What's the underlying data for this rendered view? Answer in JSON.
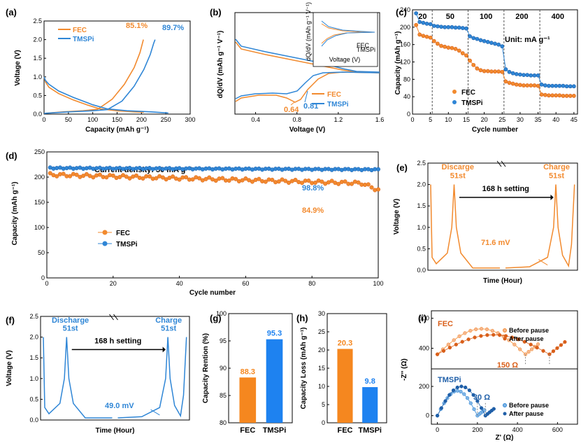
{
  "colors": {
    "fec": "#F28A2E",
    "tmspi": "#2F86D6",
    "fec_dark": "#D95F1A",
    "tmspi_dark": "#1F5FA8",
    "bar_fec": "#F5871F",
    "bar_tmspi": "#1E82F0"
  },
  "panels": {
    "a": {
      "label": "(a)",
      "xlabel": "Capacity (mAh g⁻¹)",
      "ylabel": "Voltage (V)",
      "xticks": [
        "0",
        "50",
        "100",
        "150",
        "200",
        "250",
        "300"
      ],
      "yticks": [
        "0.0",
        "0.5",
        "1.0",
        "1.5",
        "2.0",
        "2.5"
      ],
      "legend": [
        "FEC",
        "TMSPi"
      ],
      "annot_fec": "85.1%",
      "annot_tmspi": "89.7%"
    },
    "b": {
      "label": "(b)",
      "xlabel": "Voltage (V)",
      "ylabel": "dQ/dV (mAh g⁻¹ V⁻¹)",
      "xticks": [
        "0.4",
        "0.8",
        "1.2",
        "1.6"
      ],
      "legend": [
        "FEC",
        "TMSPi"
      ],
      "peak_fec": "0.64",
      "peak_tmspi": "0.81",
      "inset_ylabel": "dQ/dV (mAh g⁻¹ V⁻¹)",
      "inset_xlabel": "Voltage (V)",
      "inset_legend": [
        "FEC",
        "TMSPi"
      ]
    },
    "c": {
      "label": "(c)",
      "xlabel": "Cycle number",
      "ylabel": "Capacity (mAh g⁻¹)",
      "xticks": [
        "0",
        "5",
        "10",
        "15",
        "20",
        "25",
        "30",
        "35",
        "40",
        "45"
      ],
      "yticks": [
        "0",
        "40",
        "80",
        "120",
        "160",
        "200",
        "240"
      ],
      "rates": [
        "20",
        "50",
        "100",
        "200",
        "400"
      ],
      "unit": "Unit: mA g⁻¹",
      "legend": [
        "FEC",
        "TMSPi"
      ]
    },
    "d": {
      "label": "(d)",
      "xlabel": "Cycle number",
      "ylabel": "Capacity (mAh g⁻¹)",
      "xticks": [
        "0",
        "20",
        "40",
        "60",
        "80",
        "100"
      ],
      "yticks": [
        "0",
        "50",
        "100",
        "150",
        "200",
        "250"
      ],
      "note": "Current density: 50 mA g⁻¹",
      "retention_tmspi": "98.8%",
      "retention_fec": "84.9%",
      "legend": [
        "FEC",
        "TMSPi"
      ]
    },
    "e": {
      "label": "(e)",
      "xlabel": "Time (Hour)",
      "ylabel": "Voltage (V)",
      "yticks": [
        "0.0",
        "0.5",
        "1.0",
        "1.5",
        "2.0",
        "2.5"
      ],
      "discharge": "Discarge",
      "discharge_n": "51st",
      "charge": "Charge",
      "charge_n": "51st",
      "setting": "168 h setting",
      "mv": "71.6 mV"
    },
    "f": {
      "label": "(f)",
      "xlabel": "Time (Hour)",
      "ylabel": "Voltage (V)",
      "yticks": [
        "0.0",
        "0.5",
        "1.0",
        "1.5",
        "2.0",
        "2.5"
      ],
      "discharge": "Discharge",
      "discharge_n": "51st",
      "charge": "Charge",
      "charge_n": "51st",
      "setting": "168 h setting",
      "mv": "49.0 mV"
    },
    "g": {
      "label": "(g)",
      "ylabel": "Capacity Rention (%)",
      "yticks": [
        "80",
        "85",
        "90",
        "95",
        "100"
      ],
      "categories": [
        "FEC",
        "TMSPi"
      ],
      "labels": [
        "88.3",
        "95.3"
      ]
    },
    "h": {
      "label": "(h)",
      "ylabel": "Capacity Loss (mAh g⁻¹)",
      "yticks": [
        "0",
        "5",
        "10",
        "15",
        "20",
        "25",
        "30"
      ],
      "categories": [
        "FEC",
        "TMSPi"
      ],
      "labels": [
        "20.3",
        "9.8"
      ]
    },
    "i": {
      "label": "(i)",
      "xlabel": "Z' (Ω)",
      "ylabel": "-Z'' (Ω)",
      "xticks": [
        "0",
        "200",
        "400",
        "600"
      ],
      "yticks_top": [
        "400",
        "600"
      ],
      "yticks_bot": [
        "0",
        "200"
      ],
      "top_name": "FEC",
      "bot_name": "TMSPi",
      "legend": [
        "Before pause",
        "After pause"
      ],
      "delta_fec": "150 Ω",
      "delta_tmspi": "30 Ω"
    }
  },
  "chart_data": [
    {
      "type": "line",
      "panel": "a",
      "title": "",
      "xlabel": "Capacity (mAh g-1)",
      "ylabel": "Voltage (V)",
      "xlim": [
        0,
        300
      ],
      "ylim": [
        0,
        2.5
      ],
      "series": [
        {
          "name": "FEC discharge",
          "x": [
            0,
            3,
            10,
            30,
            60,
            90,
            115,
            150,
            185,
            205
          ],
          "y": [
            1.0,
            0.86,
            0.72,
            0.55,
            0.38,
            0.24,
            0.14,
            0.09,
            0.06,
            0.05
          ]
        },
        {
          "name": "FEC charge",
          "x": [
            0,
            40,
            80,
            110,
            140,
            165,
            185,
            197,
            202,
            204
          ],
          "y": [
            0.02,
            0.06,
            0.09,
            0.13,
            0.4,
            0.8,
            1.25,
            1.65,
            1.9,
            2.0
          ]
        },
        {
          "name": "TMSPi discharge",
          "x": [
            0,
            3,
            10,
            30,
            60,
            100,
            130,
            170,
            220,
            255
          ],
          "y": [
            1.0,
            0.9,
            0.8,
            0.62,
            0.45,
            0.25,
            0.14,
            0.09,
            0.06,
            0.03
          ]
        },
        {
          "name": "TMSPi charge",
          "x": [
            0,
            50,
            100,
            130,
            160,
            185,
            205,
            218,
            225,
            228
          ],
          "y": [
            0.02,
            0.06,
            0.09,
            0.12,
            0.35,
            0.75,
            1.2,
            1.6,
            1.9,
            2.0
          ]
        }
      ]
    },
    {
      "type": "line",
      "panel": "b",
      "xlabel": "Voltage (V)",
      "ylabel": "dQ/dV",
      "xlim": [
        0.2,
        1.6
      ],
      "series": [
        {
          "name": "FEC",
          "peak_label": "0.64"
        },
        {
          "name": "TMSPi",
          "peak_label": "0.81"
        }
      ]
    },
    {
      "type": "scatter",
      "panel": "c",
      "xlabel": "Cycle number",
      "ylabel": "Capacity (mAh g-1)",
      "xlim": [
        0,
        46
      ],
      "ylim": [
        0,
        240
      ],
      "series": [
        {
          "name": "FEC",
          "x": [
            1,
            2,
            3,
            4,
            5,
            6,
            7,
            8,
            9,
            10,
            11,
            12,
            13,
            14,
            15,
            16,
            17,
            18,
            19,
            20,
            21,
            22,
            23,
            24,
            25,
            26,
            27,
            28,
            29,
            30,
            31,
            32,
            33,
            34,
            35,
            36,
            37,
            38,
            39,
            40,
            41,
            42,
            43,
            44,
            45
          ],
          "y": [
            205,
            183,
            180,
            178,
            176,
            168,
            162,
            157,
            155,
            153,
            152,
            150,
            146,
            140,
            135,
            123,
            113,
            105,
            101,
            99,
            99,
            98,
            98,
            98,
            97,
            75,
            72,
            70,
            68,
            67,
            66,
            66,
            66,
            66,
            65,
            45,
            44,
            43,
            43,
            43,
            43,
            42,
            42,
            42,
            42
          ]
        },
        {
          "name": "TMSPi",
          "x": [
            1,
            2,
            3,
            4,
            5,
            6,
            7,
            8,
            9,
            10,
            11,
            12,
            13,
            14,
            15,
            16,
            17,
            18,
            19,
            20,
            21,
            22,
            23,
            24,
            25,
            26,
            27,
            28,
            29,
            30,
            31,
            32,
            33,
            34,
            35,
            36,
            37,
            38,
            39,
            40,
            41,
            42,
            43,
            44,
            45
          ],
          "y": [
            232,
            212,
            210,
            208,
            207,
            203,
            202,
            201,
            200,
            200,
            200,
            199,
            199,
            198,
            197,
            179,
            175,
            173,
            170,
            168,
            166,
            164,
            162,
            160,
            156,
            103,
            97,
            94,
            92,
            91,
            90,
            90,
            89,
            89,
            89,
            68,
            66,
            65,
            65,
            65,
            65,
            65,
            64,
            64,
            64
          ]
        }
      ]
    },
    {
      "type": "scatter",
      "panel": "d",
      "xlabel": "Cycle number",
      "ylabel": "Capacity (mAh g-1)",
      "xlim": [
        0,
        100
      ],
      "ylim": [
        0,
        250
      ],
      "series": [
        {
          "name": "FEC",
          "start": 205,
          "end": 174,
          "retention": "84.9%"
        },
        {
          "name": "TMSPi",
          "start": 218,
          "end": 215,
          "retention": "98.8%"
        }
      ]
    },
    {
      "type": "bar",
      "panel": "g",
      "categories": [
        "FEC",
        "TMSPi"
      ],
      "values": [
        88.3,
        95.3
      ],
      "ylabel": "Capacity Rention (%)",
      "ylim": [
        80,
        100
      ]
    },
    {
      "type": "bar",
      "panel": "h",
      "categories": [
        "FEC",
        "TMSPi"
      ],
      "values": [
        20.3,
        9.8
      ],
      "ylabel": "Capacity Loss (mAh g-1)",
      "ylim": [
        0,
        30
      ]
    },
    {
      "type": "scatter",
      "panel": "i",
      "xlabel": "Z' (ohm)",
      "ylabel": "-Z'' (ohm)",
      "series": [
        {
          "name": "FEC Before pause",
          "x_start": 0,
          "x_end": 460,
          "rct_delta": "150 Ω"
        },
        {
          "name": "FEC After pause",
          "x_start": 0,
          "x_end": 640
        },
        {
          "name": "TMSPi Before pause",
          "x_start": 0,
          "x_end": 250,
          "rct_delta": "30 Ω"
        },
        {
          "name": "TMSPi After pause",
          "x_start": 0,
          "x_end": 290
        }
      ]
    }
  ]
}
